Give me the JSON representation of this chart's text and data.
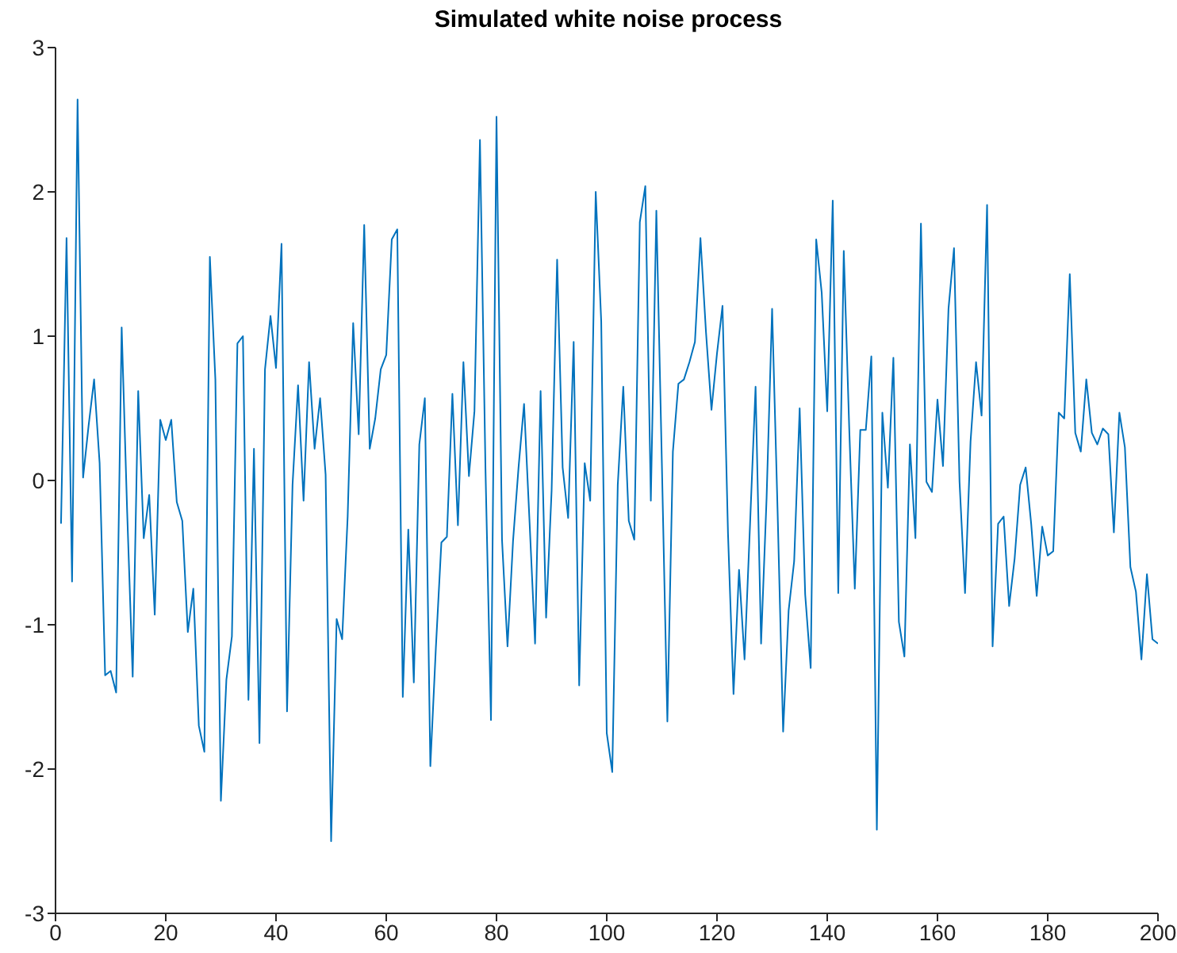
{
  "chart_data": {
    "type": "line",
    "title": "Simulated white noise process",
    "x": [
      1,
      2,
      3,
      4,
      5,
      6,
      7,
      8,
      9,
      10,
      11,
      12,
      13,
      14,
      15,
      16,
      17,
      18,
      19,
      20,
      21,
      22,
      23,
      24,
      25,
      26,
      27,
      28,
      29,
      30,
      31,
      32,
      33,
      34,
      35,
      36,
      37,
      38,
      39,
      40,
      41,
      42,
      43,
      44,
      45,
      46,
      47,
      48,
      49,
      50,
      51,
      52,
      53,
      54,
      55,
      56,
      57,
      58,
      59,
      60,
      61,
      62,
      63,
      64,
      65,
      66,
      67,
      68,
      69,
      70,
      71,
      72,
      73,
      74,
      75,
      76,
      77,
      78,
      79,
      80,
      81,
      82,
      83,
      84,
      85,
      86,
      87,
      88,
      89,
      90,
      91,
      92,
      93,
      94,
      95,
      96,
      97,
      98,
      99,
      100,
      101,
      102,
      103,
      104,
      105,
      106,
      107,
      108,
      109,
      110,
      111,
      112,
      113,
      114,
      115,
      116,
      117,
      118,
      119,
      120,
      121,
      122,
      123,
      124,
      125,
      126,
      127,
      128,
      129,
      130,
      131,
      132,
      133,
      134,
      135,
      136,
      137,
      138,
      139,
      140,
      141,
      142,
      143,
      144,
      145,
      146,
      147,
      148,
      149,
      150,
      151,
      152,
      153,
      154,
      155,
      156,
      157,
      158,
      159,
      160,
      161,
      162,
      163,
      164,
      165,
      166,
      167,
      168,
      169,
      170,
      171,
      172,
      173,
      174,
      175,
      176,
      177,
      178,
      179,
      180,
      181,
      182,
      183,
      184,
      185,
      186,
      187,
      188,
      189,
      190,
      191,
      192,
      193,
      194,
      195,
      196,
      197,
      198,
      199,
      200
    ],
    "series": [
      {
        "color": "#0072bd",
        "values": [
          -0.3,
          1.68,
          -0.7,
          2.64,
          0.02,
          0.38,
          0.7,
          0.12,
          -1.35,
          -1.32,
          -1.47,
          1.06,
          -0.22,
          -1.36,
          0.62,
          -0.4,
          -0.1,
          -0.93,
          0.42,
          0.28,
          0.42,
          -0.15,
          -0.28,
          -1.05,
          -0.75,
          -1.7,
          -1.88,
          1.55,
          0.7,
          -2.22,
          -1.38,
          -1.08,
          0.95,
          1.0,
          -1.52,
          0.22,
          -1.82,
          0.77,
          1.14,
          0.78,
          1.64,
          -1.6,
          -0.03,
          0.66,
          -0.14,
          0.82,
          0.22,
          0.57,
          0.04,
          -2.5,
          -0.96,
          -1.1,
          -0.25,
          1.09,
          0.32,
          1.77,
          0.22,
          0.43,
          0.77,
          0.87,
          1.67,
          1.74,
          -1.5,
          -0.34,
          -1.4,
          0.25,
          0.57,
          -1.98,
          -1.16,
          -0.43,
          -0.39,
          0.6,
          -0.31,
          0.82,
          0.03,
          0.48,
          2.36,
          0.08,
          -1.66,
          2.52,
          -0.41,
          -1.15,
          -0.42,
          0.09,
          0.53,
          -0.29,
          -1.13,
          0.62,
          -0.95,
          -0.07,
          1.53,
          0.09,
          -0.26,
          0.96,
          -1.42,
          0.12,
          -0.14,
          2.0,
          1.1,
          -1.75,
          -2.02,
          -0.03,
          0.65,
          -0.28,
          -0.41,
          1.79,
          2.04,
          -0.14,
          1.87,
          0.12,
          -1.67,
          0.2,
          0.67,
          0.7,
          0.82,
          0.96,
          1.68,
          1.03,
          0.49,
          0.88,
          1.21,
          -0.37,
          -1.48,
          -0.62,
          -1.24,
          -0.3,
          0.65,
          -1.13,
          -0.12,
          1.19,
          -0.22,
          -1.74,
          -0.9,
          -0.56,
          0.5,
          -0.79,
          -1.3,
          1.67,
          1.3,
          0.48,
          1.94,
          -0.78,
          1.59,
          0.35,
          -0.75,
          0.35,
          0.35,
          0.86,
          -2.42,
          0.47,
          -0.05,
          0.85,
          -0.98,
          -1.22,
          0.25,
          -0.4,
          1.78,
          -0.01,
          -0.08,
          0.56,
          0.1,
          1.19,
          1.61,
          -0.01,
          -0.78,
          0.27,
          0.82,
          0.45,
          1.91,
          -1.15,
          -0.3,
          -0.25,
          -0.87,
          -0.54,
          -0.03,
          0.09,
          -0.3,
          -0.8,
          -0.32,
          -0.52,
          -0.49,
          0.47,
          0.43,
          1.43,
          0.33,
          0.2,
          0.7,
          0.33,
          0.25,
          0.36,
          0.32,
          -0.36,
          0.47,
          0.23,
          -0.6,
          -0.77,
          -1.24,
          -0.65,
          -1.1,
          -1.13
        ]
      }
    ],
    "xlim": [
      0,
      200
    ],
    "xticks": [
      0,
      20,
      40,
      60,
      80,
      100,
      120,
      140,
      160,
      180,
      200
    ],
    "ylim": [
      -3,
      3
    ],
    "yticks": [
      -3,
      -2,
      -1,
      0,
      1,
      2,
      3
    ],
    "grid": false,
    "legend": false,
    "marker": "none",
    "line_style": "solid"
  }
}
